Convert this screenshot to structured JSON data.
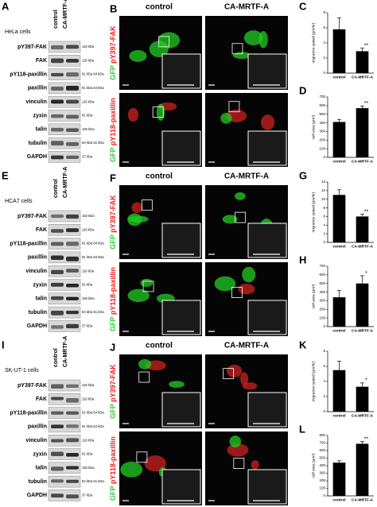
{
  "blots": [
    {
      "panel_label": "A",
      "cell_line": "HeLa cells",
      "lanes": [
        "control",
        "CA-MRTF-A"
      ],
      "rows": [
        {
          "protein": "pY397-FAK",
          "size": "116 kDa"
        },
        {
          "protein": "FAK",
          "size": "116 kDa"
        },
        {
          "protein": "pY118-paxillin",
          "size": "91 kDa 64 kDa"
        },
        {
          "protein": "paxillin",
          "size": "91 kDa 64 kDa"
        },
        {
          "protein": "vinculin",
          "size": "116 kDa"
        },
        {
          "protein": "zyxin",
          "size": "81 kDa"
        },
        {
          "protein": "talin",
          "size": "192 kDa"
        },
        {
          "protein": "tubulin",
          "size": "64 kDa 51 kDa"
        },
        {
          "protein": "GAPDH",
          "size": "37 kDa"
        }
      ]
    },
    {
      "panel_label": "E",
      "cell_line": "HCA7 cells",
      "lanes": [
        "control",
        "CA-MRTF-A"
      ],
      "rows": [
        {
          "protein": "pY397-FAK",
          "size": "152 kDa"
        },
        {
          "protein": "FAK",
          "size": "116 kDa"
        },
        {
          "protein": "pY118-paxillin",
          "size": "91 kDa 64 kDa"
        },
        {
          "protein": "paxillin",
          "size": "91 kDa 64 kDa"
        },
        {
          "protein": "vinculin",
          "size": "116 kDa"
        },
        {
          "protein": "zyxin",
          "size": "81 kDa"
        },
        {
          "protein": "talin",
          "size": "192 kDa"
        },
        {
          "protein": "tubulin",
          "size": "64 kDa 51 kDa"
        },
        {
          "protein": "GAPDH",
          "size": "37 kDa"
        }
      ]
    },
    {
      "panel_label": "I",
      "cell_line": "SK-UT-1 cells",
      "lanes": [
        "control",
        "CA-MRTF-A"
      ],
      "rows": [
        {
          "protein": "pY397-FAK",
          "size": "116 kDa"
        },
        {
          "protein": "FAK",
          "size": "116 kDa"
        },
        {
          "protein": "pY118-paxillin",
          "size": "91 kDa 64 kDa"
        },
        {
          "protein": "paxillin",
          "size": "91 kDa 64 kDa"
        },
        {
          "protein": "vinculin",
          "size": "116 kDa"
        },
        {
          "protein": "zyxin",
          "size": "81 kDa"
        },
        {
          "protein": "talin",
          "size": "192 kDa"
        },
        {
          "protein": "tubulin",
          "size": "64 kDa 51 kDa"
        },
        {
          "protein": "GAPDH",
          "size": "37 kDa"
        }
      ]
    }
  ],
  "images": [
    {
      "panel_label": "B",
      "columns": [
        "control",
        "CA-MRTF-A"
      ],
      "rows": [
        {
          "channel": "GFP",
          "stain": "pY397-FAK"
        },
        {
          "channel": "GFP",
          "stain": "pY118-paxillin"
        }
      ]
    },
    {
      "panel_label": "F",
      "columns": [
        "control",
        "CA-MRTF-A"
      ],
      "rows": [
        {
          "channel": "GFP",
          "stain": "pY397-FAK"
        },
        {
          "channel": "GFP",
          "stain": "pY118-paxillin"
        }
      ]
    },
    {
      "panel_label": "J",
      "columns": [
        "control",
        "CA-MRTF-A"
      ],
      "rows": [
        {
          "channel": "GFP",
          "stain": "pY397-FAK"
        },
        {
          "channel": "GFP",
          "stain": "pY118-paxillin"
        }
      ]
    }
  ],
  "chart_data": [
    {
      "type": "bar",
      "panel_label": "C",
      "ylabel": "migration speed (µm/hr)",
      "categories": [
        "control",
        "CA-MRTF-A"
      ],
      "values": [
        5.8,
        2.9
      ],
      "errors": [
        1.5,
        0.4
      ],
      "significance": "**",
      "ylim": [
        0,
        8
      ],
      "yticks": [
        0,
        2,
        4,
        6,
        8
      ],
      "color": "#000000"
    },
    {
      "type": "bar",
      "panel_label": "D",
      "ylabel": "cell area (µm²)",
      "categories": [
        "control",
        "CA-MRTF-A"
      ],
      "values": [
        410,
        570
      ],
      "errors": [
        30,
        25
      ],
      "significance": "**",
      "ylim": [
        0,
        700
      ],
      "yticks": [
        0,
        100,
        200,
        300,
        400,
        500,
        600,
        700
      ],
      "color": "#000000"
    },
    {
      "type": "bar",
      "panel_label": "G",
      "ylabel": "migration speed (µm/hr)",
      "categories": [
        "control",
        "CA-MRTF-A"
      ],
      "values": [
        11,
        6
      ],
      "errors": [
        1.2,
        0.5
      ],
      "significance": "**",
      "ylim": [
        0,
        14
      ],
      "yticks": [
        0,
        2,
        4,
        6,
        8,
        10,
        12,
        14
      ],
      "color": "#000000"
    },
    {
      "type": "bar",
      "panel_label": "H",
      "ylabel": "cell area (µm²)",
      "categories": [
        "control",
        "CA-MRTF-A"
      ],
      "values": [
        340,
        500
      ],
      "errors": [
        80,
        90
      ],
      "significance": "*",
      "ylim": [
        0,
        700
      ],
      "yticks": [
        0,
        100,
        200,
        300,
        400,
        500,
        600,
        700
      ],
      "color": "#000000"
    },
    {
      "type": "bar",
      "panel_label": "K",
      "ylabel": "migration speed (µm/hr)",
      "categories": [
        "control",
        "CA-MRTF-A"
      ],
      "values": [
        5.5,
        3.3
      ],
      "errors": [
        1.2,
        0.5
      ],
      "significance": "*",
      "ylim": [
        0,
        8
      ],
      "yticks": [
        0,
        2,
        4,
        6,
        8
      ],
      "color": "#000000"
    },
    {
      "type": "bar",
      "panel_label": "L",
      "ylabel": "cell area (µm²)",
      "categories": [
        "control",
        "CA-MRTF-A"
      ],
      "values": [
        440,
        690
      ],
      "errors": [
        25,
        30
      ],
      "significance": "**",
      "ylim": [
        0,
        800
      ],
      "yticks": [
        0,
        100,
        200,
        300,
        400,
        500,
        600,
        700,
        800
      ],
      "color": "#000000"
    }
  ]
}
